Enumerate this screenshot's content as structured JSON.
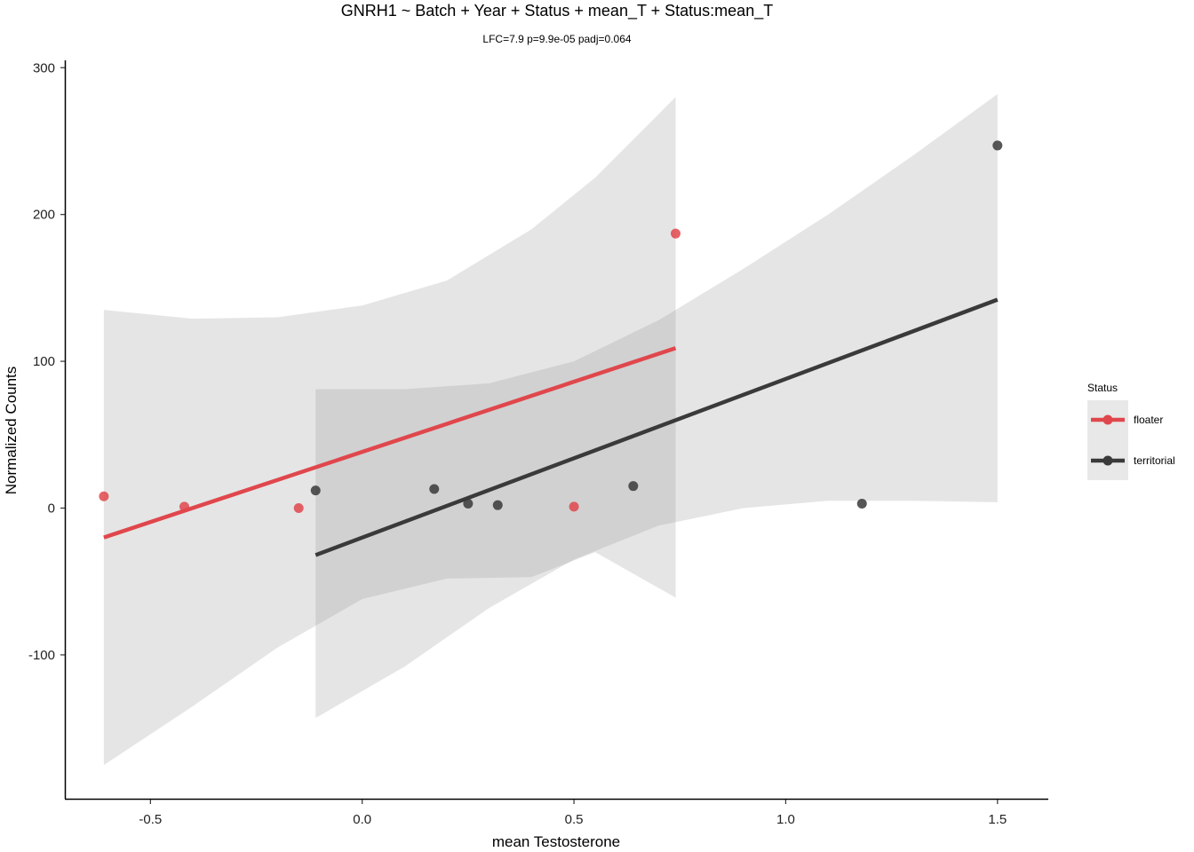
{
  "chart_data": {
    "type": "scatter",
    "title": "GNRH1 ~ Batch + Year + Status + mean_T + Status:mean_T",
    "subtitle": "LFC=7.9 p=9.9e-05 padj=0.064",
    "xlabel": "mean Testosterone",
    "ylabel": "Normalized Counts",
    "xlim": [
      -0.7,
      1.62
    ],
    "ylim": [
      -198,
      305
    ],
    "x_ticks": [
      -0.5,
      0.0,
      0.5,
      1.0,
      1.5
    ],
    "x_tick_labels": [
      "-0.5",
      "0.0",
      "0.5",
      "1.0",
      "1.5"
    ],
    "y_ticks": [
      -100,
      0,
      100,
      200,
      300
    ],
    "y_tick_labels": [
      "-100",
      "0",
      "100",
      "200",
      "300"
    ],
    "grid": false,
    "legend": {
      "title": "Status",
      "placement": "right",
      "entries": [
        "floater",
        "territorial"
      ]
    },
    "series": [
      {
        "name": "floater",
        "color": "#e0474c",
        "points": [
          {
            "x": -0.61,
            "y": 8
          },
          {
            "x": -0.42,
            "y": 1
          },
          {
            "x": -0.15,
            "y": 0
          },
          {
            "x": 0.5,
            "y": 1
          },
          {
            "x": 0.74,
            "y": 187
          }
        ],
        "fit": {
          "x": [
            -0.61,
            0.74
          ],
          "y": [
            -20,
            109
          ]
        },
        "ribbon": {
          "x": [
            -0.61,
            -0.4,
            -0.2,
            0.0,
            0.2,
            0.4,
            0.55,
            0.74
          ],
          "upper": [
            135,
            129,
            130,
            138,
            155,
            190,
            225,
            280
          ],
          "lower": [
            -175,
            -135,
            -95,
            -62,
            -48,
            -47,
            -30,
            -61
          ]
        }
      },
      {
        "name": "territorial",
        "color": "#3a3a3a",
        "points": [
          {
            "x": -0.11,
            "y": 12
          },
          {
            "x": 0.17,
            "y": 13
          },
          {
            "x": 0.25,
            "y": 3
          },
          {
            "x": 0.32,
            "y": 2
          },
          {
            "x": 0.64,
            "y": 15
          },
          {
            "x": 1.18,
            "y": 3
          },
          {
            "x": 1.5,
            "y": 247
          }
        ],
        "fit": {
          "x": [
            -0.11,
            1.5
          ],
          "y": [
            -32,
            142
          ]
        },
        "ribbon": {
          "x": [
            -0.11,
            0.1,
            0.3,
            0.5,
            0.7,
            0.9,
            1.1,
            1.3,
            1.5
          ],
          "upper": [
            81,
            81,
            85,
            100,
            128,
            163,
            200,
            240,
            282
          ],
          "lower": [
            -143,
            -108,
            -68,
            -35,
            -12,
            0,
            5,
            5,
            4
          ]
        }
      }
    ]
  }
}
